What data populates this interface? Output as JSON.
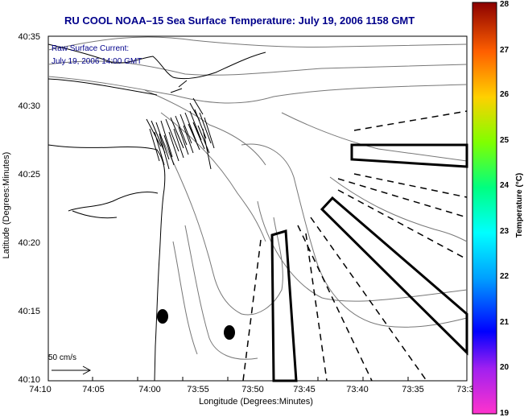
{
  "title": "RU COOL  NOAA–15  Sea Surface Temperature:  July 19, 2006 1158 GMT",
  "annotation": {
    "line1": "Raw Surface Current:",
    "line2": "July 19, 2006 14:00 GMT"
  },
  "scale": {
    "label": "50 cm/s"
  },
  "axes": {
    "xlabel": "Longitude (Degrees:Minutes)",
    "ylabel": "Latitude (Degrees:Minutes)",
    "xticks": [
      "74:10",
      "74:05",
      "74:00",
      "73:55",
      "73:50",
      "73:45",
      "73:40",
      "73:35",
      "73:3"
    ],
    "yticks": [
      "40:35",
      "40:30",
      "40:25",
      "40:20",
      "40:15",
      "40:10"
    ]
  },
  "colorbar": {
    "label": "Temperature (°C)",
    "ticks": [
      "28",
      "27",
      "26",
      "25",
      "24",
      "23",
      "22",
      "21",
      "20",
      "19"
    ],
    "min": 19,
    "max": 28
  }
}
